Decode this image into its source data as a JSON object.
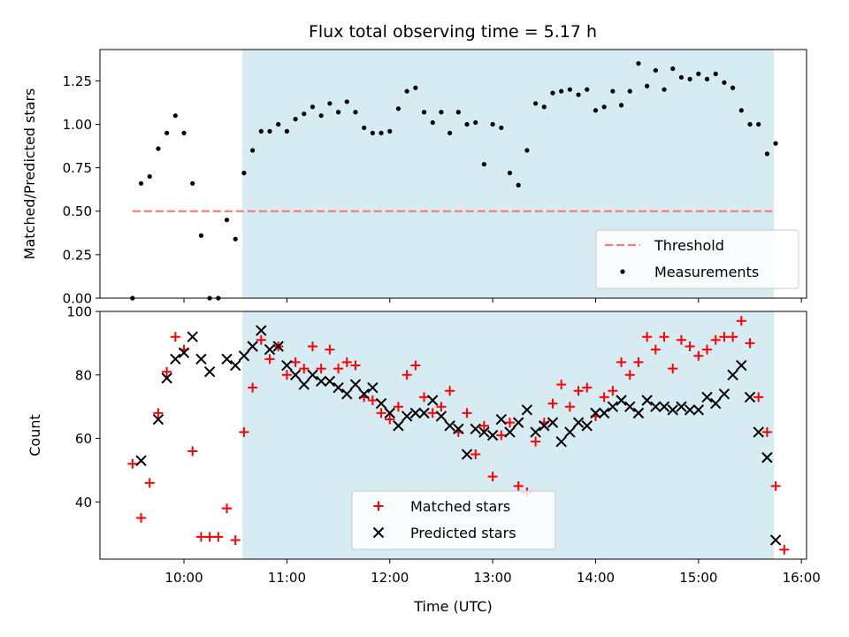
{
  "chart_data": [
    {
      "type": "scatter",
      "title": "Flux total observing time = 5.17 h",
      "ylabel": "Matched/Predicted stars",
      "xlabel": "",
      "xlim": [
        "09:11",
        "16:03"
      ],
      "ylim": [
        0,
        1.43
      ],
      "xticks": [
        "10:00",
        "11:00",
        "12:00",
        "13:00",
        "14:00",
        "15:00",
        "16:00"
      ],
      "yticks": [
        "0.00",
        "0.25",
        "0.50",
        "0.75",
        "1.00",
        "1.25"
      ],
      "observing_window": [
        "10:34",
        "15:44"
      ],
      "threshold": {
        "name": "Threshold",
        "y": 0.5,
        "x_range": [
          "09:30",
          "15:43"
        ],
        "color": "#f08080",
        "style": "dashed"
      },
      "legend": {
        "position": "lower-right",
        "entries": [
          "Threshold",
          "Measurements"
        ]
      },
      "series": [
        {
          "name": "Measurements",
          "color": "#000000",
          "marker": "dot",
          "points": [
            [
              "09:30",
              0.0
            ],
            [
              "09:35",
              0.66
            ],
            [
              "09:40",
              0.7
            ],
            [
              "09:45",
              0.86
            ],
            [
              "09:50",
              0.95
            ],
            [
              "09:55",
              1.05
            ],
            [
              "10:00",
              0.95
            ],
            [
              "10:05",
              0.66
            ],
            [
              "10:10",
              0.36
            ],
            [
              "10:15",
              0.0
            ],
            [
              "10:20",
              0.0
            ],
            [
              "10:25",
              0.45
            ],
            [
              "10:30",
              0.34
            ],
            [
              "10:35",
              0.72
            ],
            [
              "10:40",
              0.85
            ],
            [
              "10:45",
              0.96
            ],
            [
              "10:50",
              0.96
            ],
            [
              "10:55",
              1.0
            ],
            [
              "11:00",
              0.96
            ],
            [
              "11:05",
              1.03
            ],
            [
              "11:10",
              1.06
            ],
            [
              "11:15",
              1.1
            ],
            [
              "11:20",
              1.05
            ],
            [
              "11:25",
              1.12
            ],
            [
              "11:30",
              1.07
            ],
            [
              "11:35",
              1.13
            ],
            [
              "11:40",
              1.07
            ],
            [
              "11:45",
              0.98
            ],
            [
              "11:50",
              0.95
            ],
            [
              "11:55",
              0.95
            ],
            [
              "12:00",
              0.96
            ],
            [
              "12:05",
              1.09
            ],
            [
              "12:10",
              1.19
            ],
            [
              "12:15",
              1.21
            ],
            [
              "12:20",
              1.07
            ],
            [
              "12:25",
              1.01
            ],
            [
              "12:30",
              1.07
            ],
            [
              "12:35",
              0.95
            ],
            [
              "12:40",
              1.07
            ],
            [
              "12:45",
              1.0
            ],
            [
              "12:50",
              1.01
            ],
            [
              "12:55",
              0.77
            ],
            [
              "13:00",
              1.0
            ],
            [
              "13:05",
              0.98
            ],
            [
              "13:10",
              0.72
            ],
            [
              "13:15",
              0.65
            ],
            [
              "13:20",
              0.85
            ],
            [
              "13:25",
              1.12
            ],
            [
              "13:30",
              1.1
            ],
            [
              "13:35",
              1.18
            ],
            [
              "13:40",
              1.19
            ],
            [
              "13:45",
              1.2
            ],
            [
              "13:50",
              1.17
            ],
            [
              "13:55",
              1.2
            ],
            [
              "14:00",
              1.08
            ],
            [
              "14:05",
              1.1
            ],
            [
              "14:10",
              1.19
            ],
            [
              "14:15",
              1.11
            ],
            [
              "14:20",
              1.19
            ],
            [
              "14:25",
              1.35
            ],
            [
              "14:30",
              1.22
            ],
            [
              "14:35",
              1.31
            ],
            [
              "14:40",
              1.2
            ],
            [
              "14:45",
              1.32
            ],
            [
              "14:50",
              1.27
            ],
            [
              "14:55",
              1.26
            ],
            [
              "15:00",
              1.29
            ],
            [
              "15:05",
              1.26
            ],
            [
              "15:10",
              1.29
            ],
            [
              "15:15",
              1.24
            ],
            [
              "15:20",
              1.21
            ],
            [
              "15:25",
              1.08
            ],
            [
              "15:30",
              1.0
            ],
            [
              "15:35",
              1.0
            ],
            [
              "15:40",
              0.83
            ],
            [
              "15:45",
              0.89
            ]
          ]
        }
      ]
    },
    {
      "type": "scatter",
      "title": "",
      "ylabel": "Count",
      "xlabel": "Time (UTC)",
      "xlim": [
        "09:11",
        "16:03"
      ],
      "ylim": [
        22,
        100
      ],
      "xticks": [
        "10:00",
        "11:00",
        "12:00",
        "13:00",
        "14:00",
        "15:00",
        "16:00"
      ],
      "yticks": [
        "40",
        "60",
        "80",
        "100"
      ],
      "observing_window": [
        "10:34",
        "15:44"
      ],
      "legend": {
        "position": "lower-center",
        "entries": [
          "Matched stars",
          "Predicted stars"
        ]
      },
      "series": [
        {
          "name": "Matched stars",
          "color": "#ff0000",
          "marker": "plus",
          "points": [
            [
              "09:30",
              52
            ],
            [
              "09:35",
              35
            ],
            [
              "09:40",
              46
            ],
            [
              "09:45",
              68
            ],
            [
              "09:50",
              81
            ],
            [
              "09:55",
              92
            ],
            [
              "10:00",
              88
            ],
            [
              "10:05",
              56
            ],
            [
              "10:10",
              29
            ],
            [
              "10:15",
              29
            ],
            [
              "10:20",
              29
            ],
            [
              "10:25",
              38
            ],
            [
              "10:30",
              28
            ],
            [
              "10:35",
              62
            ],
            [
              "10:40",
              76
            ],
            [
              "10:45",
              91
            ],
            [
              "10:50",
              85
            ],
            [
              "10:55",
              89
            ],
            [
              "11:00",
              80
            ],
            [
              "11:05",
              84
            ],
            [
              "11:10",
              82
            ],
            [
              "11:15",
              89
            ],
            [
              "11:20",
              82
            ],
            [
              "11:25",
              88
            ],
            [
              "11:30",
              82
            ],
            [
              "11:35",
              84
            ],
            [
              "11:40",
              83
            ],
            [
              "11:45",
              73
            ],
            [
              "11:50",
              72
            ],
            [
              "11:55",
              68
            ],
            [
              "12:00",
              66
            ],
            [
              "12:05",
              70
            ],
            [
              "12:10",
              80
            ],
            [
              "12:15",
              83
            ],
            [
              "12:20",
              73
            ],
            [
              "12:25",
              68
            ],
            [
              "12:30",
              70
            ],
            [
              "12:35",
              75
            ],
            [
              "12:40",
              62
            ],
            [
              "12:45",
              68
            ],
            [
              "12:50",
              55
            ],
            [
              "12:55",
              64
            ],
            [
              "13:00",
              48
            ],
            [
              "13:05",
              61
            ],
            [
              "13:10",
              65
            ],
            [
              "13:15",
              45
            ],
            [
              "13:20",
              43
            ],
            [
              "13:25",
              59
            ],
            [
              "13:30",
              65
            ],
            [
              "13:35",
              71
            ],
            [
              "13:40",
              77
            ],
            [
              "13:45",
              70
            ],
            [
              "13:50",
              75
            ],
            [
              "13:55",
              76
            ],
            [
              "14:00",
              67
            ],
            [
              "14:05",
              73
            ],
            [
              "14:10",
              75
            ],
            [
              "14:15",
              84
            ],
            [
              "14:20",
              80
            ],
            [
              "14:25",
              84
            ],
            [
              "14:30",
              92
            ],
            [
              "14:35",
              88
            ],
            [
              "14:40",
              92
            ],
            [
              "14:45",
              82
            ],
            [
              "14:50",
              91
            ],
            [
              "14:55",
              89
            ],
            [
              "15:00",
              86
            ],
            [
              "15:05",
              88
            ],
            [
              "15:10",
              91
            ],
            [
              "15:15",
              92
            ],
            [
              "15:20",
              92
            ],
            [
              "15:25",
              97
            ],
            [
              "15:30",
              90
            ],
            [
              "15:35",
              73
            ],
            [
              "15:40",
              62
            ],
            [
              "15:45",
              45
            ],
            [
              "15:50",
              25
            ]
          ]
        },
        {
          "name": "Predicted stars",
          "color": "#000000",
          "marker": "x",
          "points": [
            [
              "09:35",
              53
            ],
            [
              "09:45",
              66
            ],
            [
              "09:50",
              79
            ],
            [
              "09:55",
              85
            ],
            [
              "10:00",
              87
            ],
            [
              "10:05",
              92
            ],
            [
              "10:10",
              85
            ],
            [
              "10:15",
              81
            ],
            [
              "10:25",
              85
            ],
            [
              "10:30",
              83
            ],
            [
              "10:35",
              86
            ],
            [
              "10:40",
              89
            ],
            [
              "10:45",
              94
            ],
            [
              "10:50",
              88
            ],
            [
              "10:55",
              89
            ],
            [
              "11:00",
              83
            ],
            [
              "11:05",
              80
            ],
            [
              "11:10",
              77
            ],
            [
              "11:15",
              80
            ],
            [
              "11:20",
              78
            ],
            [
              "11:25",
              78
            ],
            [
              "11:30",
              76
            ],
            [
              "11:35",
              74
            ],
            [
              "11:40",
              77
            ],
            [
              "11:45",
              74
            ],
            [
              "11:50",
              76
            ],
            [
              "11:55",
              71
            ],
            [
              "12:00",
              68
            ],
            [
              "12:05",
              64
            ],
            [
              "12:10",
              67
            ],
            [
              "12:15",
              68
            ],
            [
              "12:20",
              68
            ],
            [
              "12:25",
              72
            ],
            [
              "12:30",
              67
            ],
            [
              "12:35",
              64
            ],
            [
              "12:40",
              63
            ],
            [
              "12:45",
              55
            ],
            [
              "12:50",
              63
            ],
            [
              "12:55",
              62
            ],
            [
              "13:00",
              61
            ],
            [
              "13:05",
              66
            ],
            [
              "13:10",
              62
            ],
            [
              "13:15",
              65
            ],
            [
              "13:20",
              69
            ],
            [
              "13:25",
              62
            ],
            [
              "13:30",
              64
            ],
            [
              "13:35",
              65
            ],
            [
              "13:40",
              59
            ],
            [
              "13:45",
              62
            ],
            [
              "13:50",
              65
            ],
            [
              "13:55",
              64
            ],
            [
              "14:00",
              68
            ],
            [
              "14:05",
              68
            ],
            [
              "14:10",
              70
            ],
            [
              "14:15",
              72
            ],
            [
              "14:20",
              70
            ],
            [
              "14:25",
              68
            ],
            [
              "14:30",
              72
            ],
            [
              "14:35",
              70
            ],
            [
              "14:40",
              70
            ],
            [
              "14:45",
              69
            ],
            [
              "14:50",
              70
            ],
            [
              "14:55",
              69
            ],
            [
              "15:00",
              69
            ],
            [
              "15:05",
              73
            ],
            [
              "15:10",
              71
            ],
            [
              "15:15",
              74
            ],
            [
              "15:20",
              80
            ],
            [
              "15:25",
              83
            ],
            [
              "15:30",
              73
            ],
            [
              "15:35",
              62
            ],
            [
              "15:40",
              54
            ],
            [
              "15:45",
              28
            ]
          ]
        }
      ]
    }
  ]
}
